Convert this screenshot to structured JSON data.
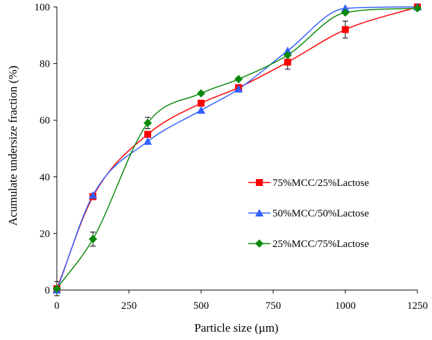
{
  "chart_data": {
    "type": "line",
    "xlabel": "Particle size (µm)",
    "ylabel": "Acumulate undersize fraction (%)",
    "xlim": [
      0,
      1250
    ],
    "ylim": [
      0,
      100
    ],
    "xticks": [
      "0",
      "250",
      "500",
      "750",
      "1000",
      "1250"
    ],
    "yticks": [
      "0",
      "20",
      "40",
      "60",
      "80",
      "100"
    ],
    "x": [
      0,
      125,
      315,
      500,
      630,
      800,
      1000,
      1250
    ],
    "grid": false,
    "smooth": true,
    "legend_position": "right-middle",
    "series": [
      {
        "name": "75%MCC/25%Lactose",
        "color": "#ff0000",
        "marker": "square",
        "values": [
          0.5,
          33,
          55,
          66,
          71.5,
          80.5,
          92,
          100
        ],
        "error": [
          0,
          0,
          0,
          0,
          0,
          2.5,
          3,
          0
        ]
      },
      {
        "name": "50%MCC/50%Lactose",
        "color": "#3060ff",
        "marker": "triangle",
        "values": [
          0,
          33.5,
          52.5,
          63.5,
          71,
          84.5,
          99.5,
          100
        ],
        "error": [
          0,
          0,
          0,
          0,
          0,
          0,
          0,
          0
        ]
      },
      {
        "name": "25%MCC/75%Lactose",
        "color": "#0a8a0a",
        "marker": "diamond",
        "values": [
          0.5,
          18,
          59,
          69.5,
          74.5,
          83,
          98,
          99.5
        ],
        "error": [
          2.5,
          2.5,
          2,
          0,
          0,
          0,
          0,
          0
        ]
      }
    ]
  }
}
